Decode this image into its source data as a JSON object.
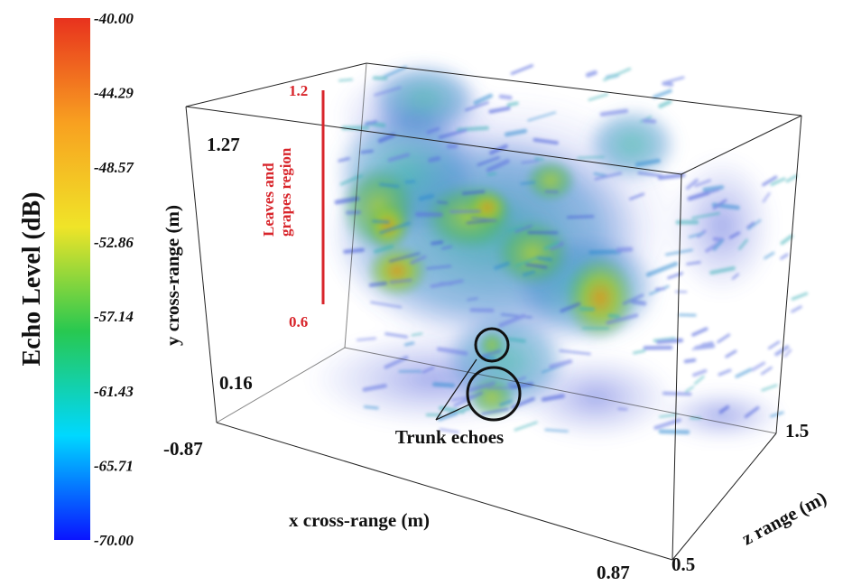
{
  "chart_data": {
    "type": "heatmap",
    "subtype": "3d-volume-render",
    "title": "",
    "colorbar": {
      "label": "Echo Level (dB)",
      "min": -70.0,
      "max": -40.0,
      "ticks": [
        "-40.00",
        "-44.29",
        "-48.57",
        "-52.86",
        "-57.14",
        "-61.43",
        "-65.71",
        "-70.00"
      ],
      "colormap": [
        "#0a14ff",
        "#00d8ff",
        "#28c850",
        "#f0e428",
        "#f8a020",
        "#e8321e"
      ],
      "placement": "left"
    },
    "axes": {
      "x": {
        "label": "x cross-range (m)",
        "min": "-0.87",
        "max": "0.87"
      },
      "y": {
        "label": "y cross-range (m)",
        "min": "0.16",
        "max": "1.27"
      },
      "z": {
        "label": "z range (m)",
        "min": "0.5",
        "max": "1.5"
      }
    },
    "annotations": {
      "region": {
        "label_line1": "Leaves and",
        "label_line2": "grapes region",
        "top": "1.2",
        "bottom": "0.6",
        "color": "#d8252b"
      },
      "trunk": {
        "label": "Trunk echoes"
      }
    },
    "grid": false
  }
}
